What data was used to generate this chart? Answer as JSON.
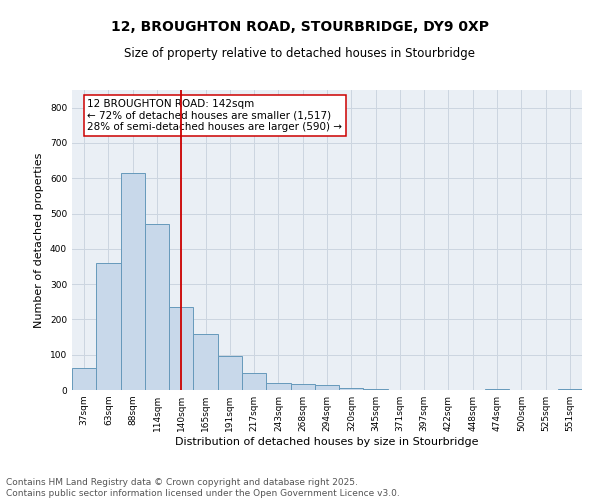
{
  "title_line1": "12, BROUGHTON ROAD, STOURBRIDGE, DY9 0XP",
  "title_line2": "Size of property relative to detached houses in Stourbridge",
  "xlabel": "Distribution of detached houses by size in Stourbridge",
  "ylabel": "Number of detached properties",
  "categories": [
    "37sqm",
    "63sqm",
    "88sqm",
    "114sqm",
    "140sqm",
    "165sqm",
    "191sqm",
    "217sqm",
    "243sqm",
    "268sqm",
    "294sqm",
    "320sqm",
    "345sqm",
    "371sqm",
    "397sqm",
    "422sqm",
    "448sqm",
    "474sqm",
    "500sqm",
    "525sqm",
    "551sqm"
  ],
  "values": [
    62,
    360,
    615,
    470,
    235,
    160,
    97,
    48,
    20,
    18,
    13,
    5,
    2,
    1,
    1,
    0,
    0,
    4,
    0,
    0,
    3
  ],
  "bar_color": "#c8d8ea",
  "bar_edge_color": "#6699bb",
  "vline_x": 4,
  "vline_color": "#cc0000",
  "annotation_text": "12 BROUGHTON ROAD: 142sqm\n← 72% of detached houses are smaller (1,517)\n28% of semi-detached houses are larger (590) →",
  "annotation_box_color": "white",
  "annotation_box_edge": "#cc0000",
  "ylim": [
    0,
    850
  ],
  "yticks": [
    0,
    100,
    200,
    300,
    400,
    500,
    600,
    700,
    800
  ],
  "grid_color": "#ccd5e0",
  "background_color": "#eaeff5",
  "footer_line1": "Contains HM Land Registry data © Crown copyright and database right 2025.",
  "footer_line2": "Contains public sector information licensed under the Open Government Licence v3.0.",
  "title_fontsize": 10,
  "subtitle_fontsize": 8.5,
  "tick_fontsize": 6.5,
  "ylabel_fontsize": 8,
  "xlabel_fontsize": 8,
  "annotation_fontsize": 7.5,
  "footer_fontsize": 6.5
}
